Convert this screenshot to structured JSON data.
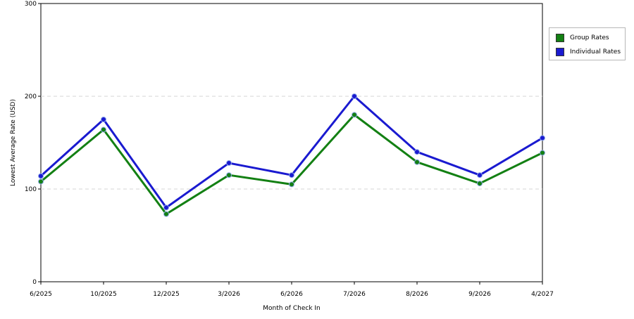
{
  "chart_data": {
    "type": "line",
    "xlabel": "Month of Check In",
    "ylabel": "Lowest Average Rate (USD)",
    "categories": [
      "6/2025",
      "10/2025",
      "12/2025",
      "3/2026",
      "6/2026",
      "7/2026",
      "8/2026",
      "9/2026",
      "4/2027"
    ],
    "ylim": [
      0,
      300
    ],
    "yticks": [
      0,
      100,
      200,
      300
    ],
    "grid": "horizontal dashed",
    "legend_position": "right",
    "series": [
      {
        "name": "Group Rates",
        "color": "#138013",
        "values": [
          108,
          164,
          73,
          115,
          105,
          180,
          129,
          106,
          139
        ]
      },
      {
        "name": "Individual Rates",
        "color": "#1a1ad0",
        "values": [
          114,
          175,
          80,
          128,
          115,
          200,
          140,
          115,
          155
        ]
      }
    ]
  }
}
